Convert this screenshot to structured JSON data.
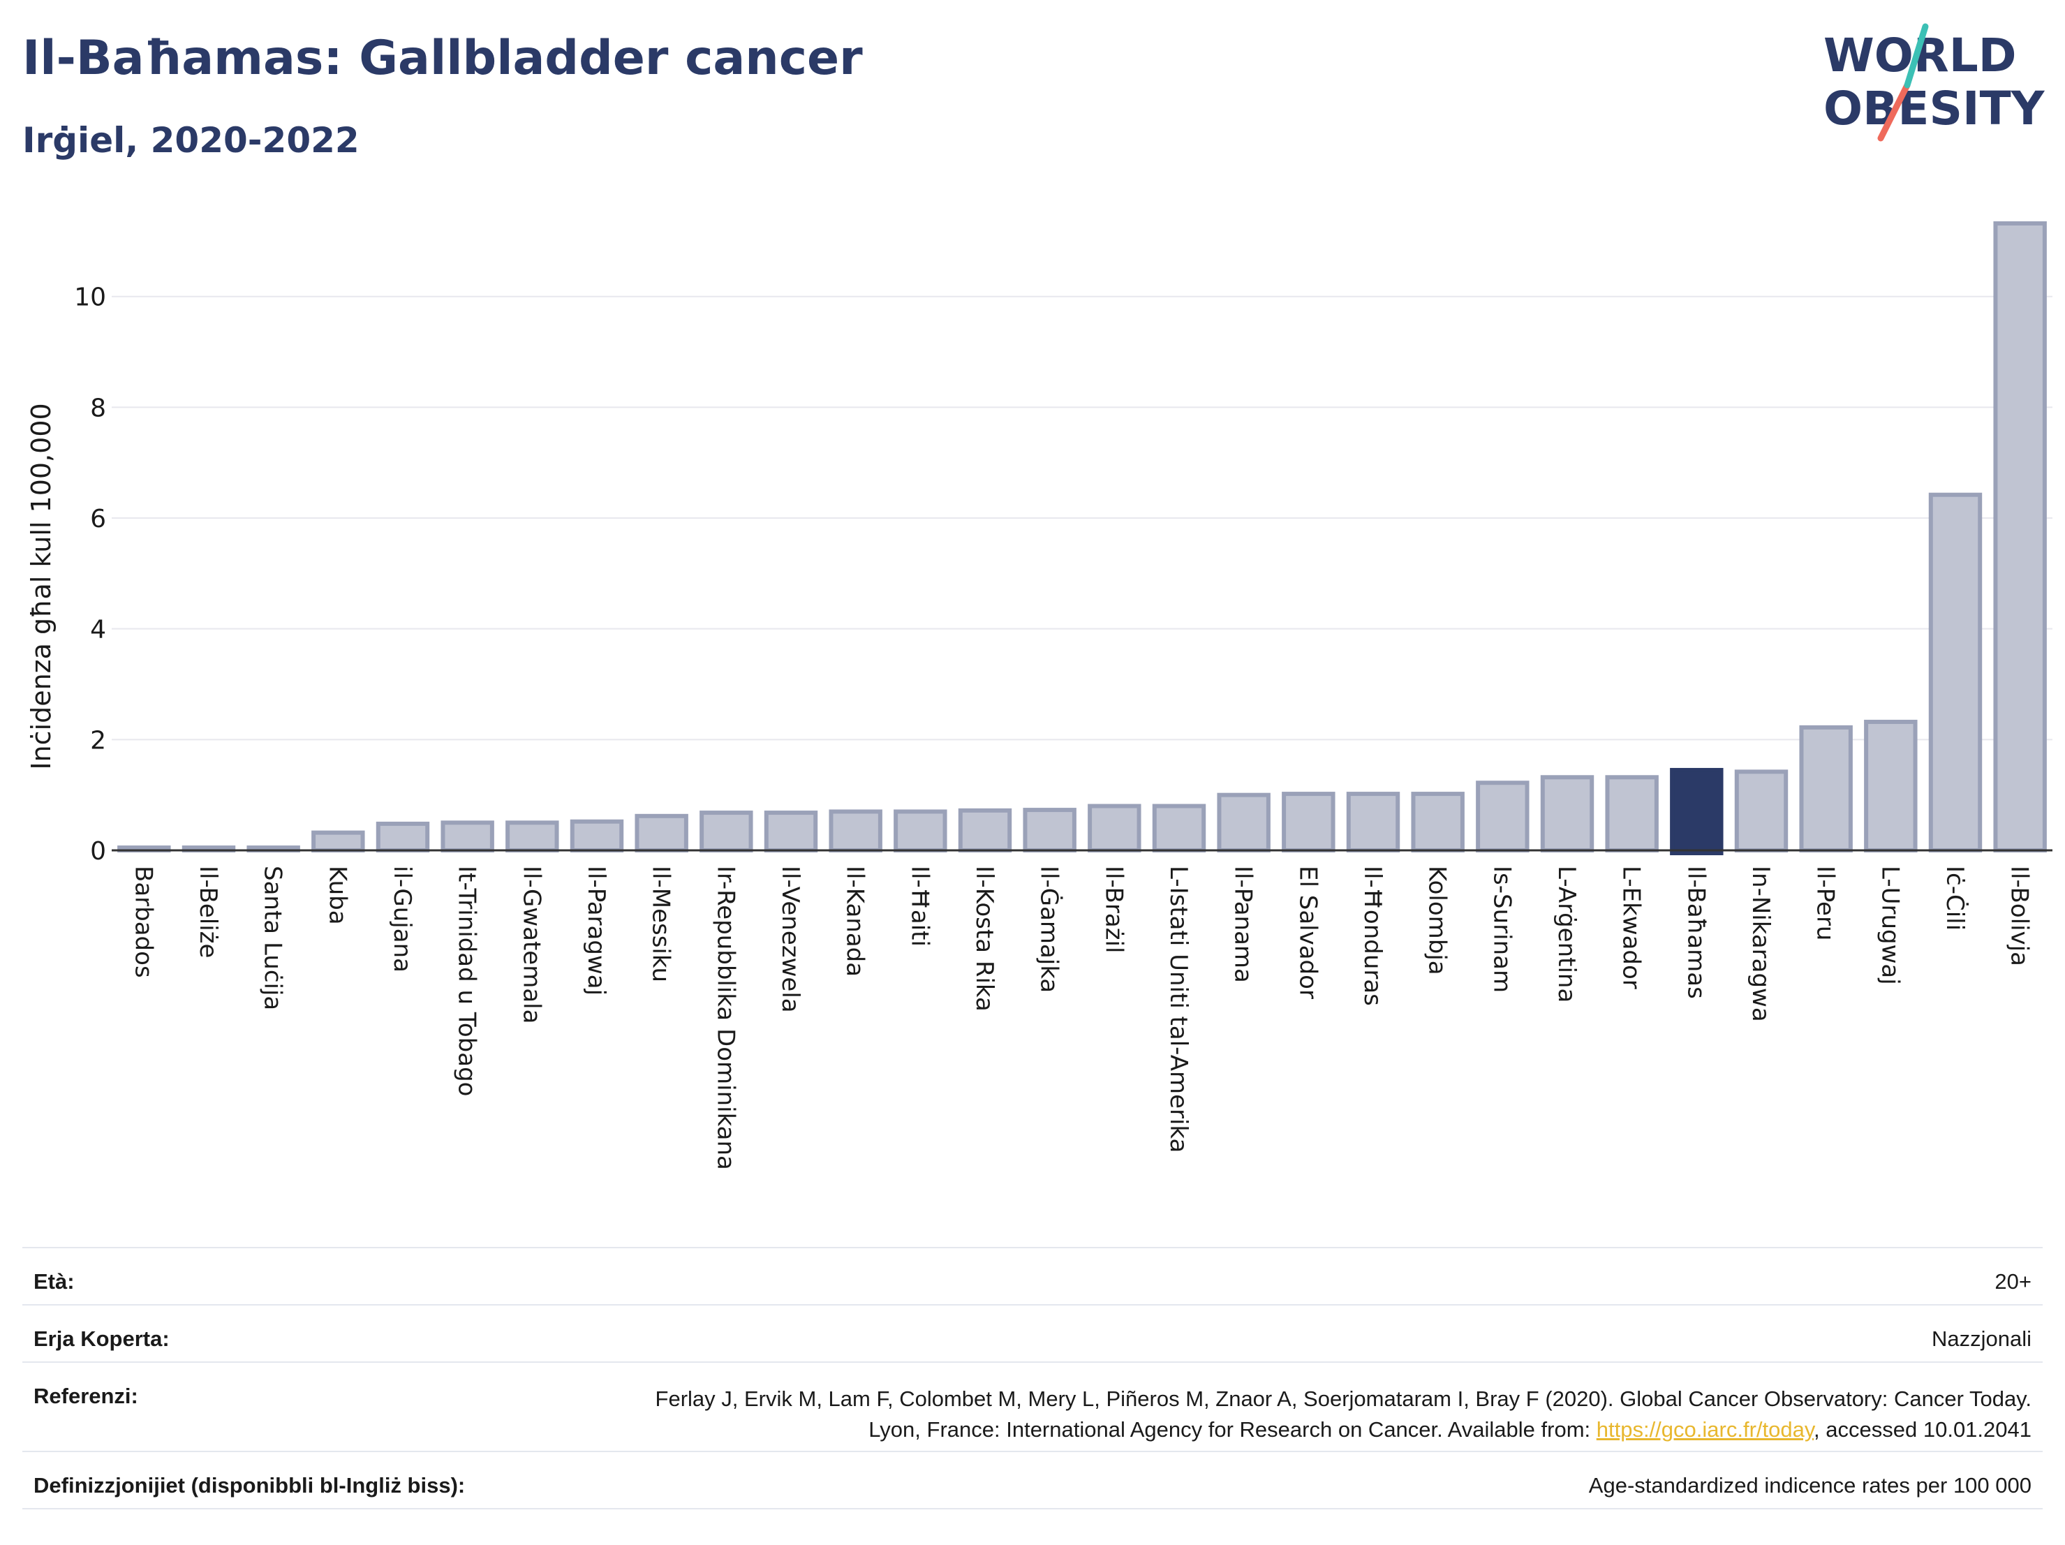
{
  "header": {
    "title": "Il-Baħamas: Gallbladder cancer",
    "subtitle": "Irġiel, 2020-2022",
    "logo_line1": "WORLD",
    "logo_line2": "OBESITY"
  },
  "colors": {
    "title": "#2b3a67",
    "bar": "#c0c4d2",
    "bar_border": "#9aa1b8",
    "highlight": "#2b3a67",
    "link": "#e8b72e",
    "logo_teal": "#3cc0b5",
    "logo_coral": "#ef6a5b"
  },
  "chart_data": {
    "type": "bar",
    "ylabel": "Inċidenza għal kull 100,000",
    "ylim": [
      0,
      11.5
    ],
    "yticks": [
      0,
      2,
      4,
      6,
      8,
      10
    ],
    "grid": true,
    "highlight": "Il-Baħamas",
    "categories": [
      "Barbados",
      "Il-Beliże",
      "Santa Luċija",
      "Kuba",
      "il-Gujana",
      "It-Trinidad u Tobago",
      "Il-Gwatemala",
      "Il-Paragwaj",
      "Il-Messiku",
      "Ir-Repubblika Dominikana",
      "Il-Venezwela",
      "Il-Kanada",
      "Il-Ħaiti",
      "Il-Kosta Rika",
      "Il-Ġamajka",
      "Il-Brażil",
      "L-Istati Uniti tal-Amerika",
      "Il-Panama",
      "El Salvador",
      "Il-Ħonduras",
      "Kolombja",
      "Is-Surinam",
      "L-Arġentina",
      "L-Ekwador",
      "Il-Baħamas",
      "In-Nikaragwa",
      "Il-Peru",
      "L-Urugwaj",
      "Iċ-Ċili",
      "Il-Bolivja"
    ],
    "values": [
      0.05,
      0.05,
      0.05,
      0.32,
      0.48,
      0.5,
      0.5,
      0.52,
      0.62,
      0.68,
      0.68,
      0.7,
      0.7,
      0.72,
      0.73,
      0.8,
      0.8,
      1.0,
      1.02,
      1.02,
      1.02,
      1.22,
      1.32,
      1.32,
      1.45,
      1.42,
      2.22,
      2.32,
      6.42,
      11.32
    ]
  },
  "info": {
    "age_label": "Età:",
    "age_value": "20+",
    "coverage_label": "Erja Koperta:",
    "coverage_value": "Nazzjonali",
    "references_label": "Referenzi:",
    "references_text1": "Ferlay J, Ervik M, Lam F, Colombet M, Mery L, Piñeros M, Znaor A, Soerjomataram I, Bray F (2020). Global Cancer Observatory: Cancer Today. Lyon, France: International Agency for Research on Cancer. Available from: ",
    "references_link": "https://gco.iarc.fr/today",
    "references_text2": ", accessed 10.01.2041",
    "definitions_label": "Definizzjonijiet (disponibbli bl-Ingliż biss):",
    "definitions_value": "Age-standardized indicence rates per 100 000"
  }
}
